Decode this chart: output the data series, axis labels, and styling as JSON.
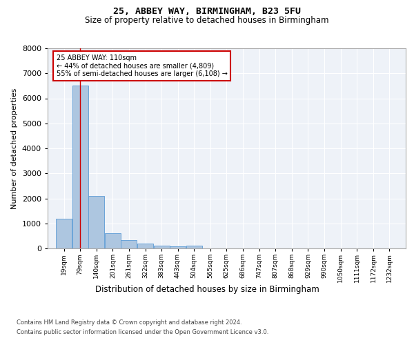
{
  "title": "25, ABBEY WAY, BIRMINGHAM, B23 5FU",
  "subtitle": "Size of property relative to detached houses in Birmingham",
  "xlabel": "Distribution of detached houses by size in Birmingham",
  "ylabel": "Number of detached properties",
  "annotation_title": "25 ABBEY WAY: 110sqm",
  "annotation_line1": "← 44% of detached houses are smaller (4,809)",
  "annotation_line2": "55% of semi-detached houses are larger (6,108) →",
  "property_size_sqm": 110,
  "vline_position": 110,
  "categories": [
    "19sqm",
    "79sqm",
    "140sqm",
    "201sqm",
    "261sqm",
    "322sqm",
    "383sqm",
    "443sqm",
    "504sqm",
    "565sqm",
    "625sqm",
    "686sqm",
    "747sqm",
    "807sqm",
    "868sqm",
    "929sqm",
    "990sqm",
    "1050sqm",
    "1111sqm",
    "1172sqm",
    "1232sqm"
  ],
  "bin_edges": [
    19,
    79,
    140,
    201,
    261,
    322,
    383,
    443,
    504,
    565,
    625,
    686,
    747,
    807,
    868,
    929,
    990,
    1050,
    1111,
    1172,
    1232
  ],
  "bin_width": 61,
  "values": [
    1200,
    6500,
    2100,
    600,
    320,
    180,
    120,
    90,
    110,
    0,
    0,
    0,
    0,
    0,
    0,
    0,
    0,
    0,
    0,
    0,
    0
  ],
  "bar_color": "#adc6e0",
  "bar_edge_color": "#5b9bd5",
  "vline_color": "#cc0000",
  "annotation_box_edge_color": "#cc0000",
  "background_color": "#eef2f8",
  "grid_color": "#ffffff",
  "ylim": [
    0,
    8000
  ],
  "yticks": [
    0,
    1000,
    2000,
    3000,
    4000,
    5000,
    6000,
    7000,
    8000
  ],
  "footer_line1": "Contains HM Land Registry data © Crown copyright and database right 2024.",
  "footer_line2": "Contains public sector information licensed under the Open Government Licence v3.0."
}
